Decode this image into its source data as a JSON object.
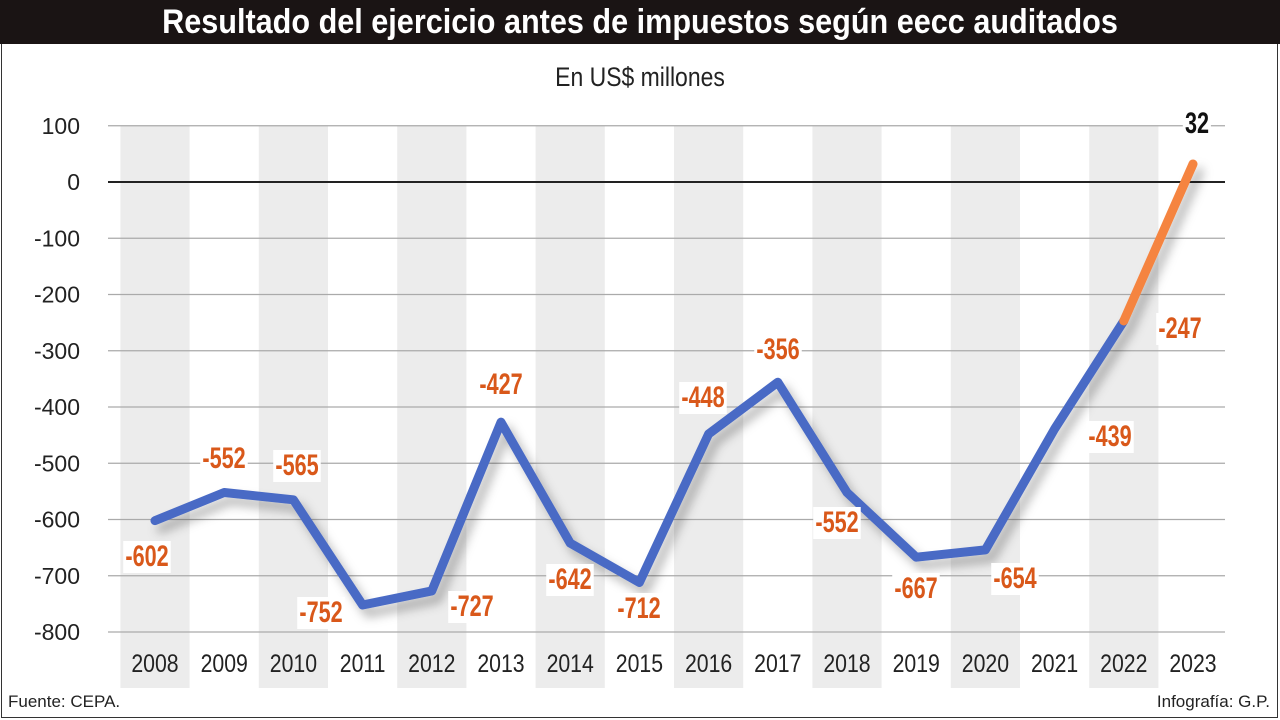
{
  "chart_data": {
    "type": "line",
    "title": "Resultado del ejercicio antes de impuestos según eecc auditados",
    "subtitle": "En US$ millones",
    "categories": [
      "2008",
      "2009",
      "2010",
      "2011",
      "2012",
      "2013",
      "2014",
      "2015",
      "2016",
      "2017",
      "2018",
      "2019",
      "2020",
      "2021",
      "2022",
      "2023"
    ],
    "values": [
      -602,
      -552,
      -565,
      -752,
      -727,
      -427,
      -642,
      -712,
      -448,
      -356,
      -552,
      -667,
      -654,
      -439,
      -247,
      32
    ],
    "data_labels": [
      "-602",
      "-552",
      "-565",
      "-752",
      "-727",
      "-427",
      "-642",
      "-712",
      "-448",
      "-356",
      "-552",
      "-667",
      "-654",
      "-439",
      "-247",
      "32"
    ],
    "ylim": [
      -800,
      100
    ],
    "yticks": [
      "100",
      "0",
      "-100",
      "-200",
      "-300",
      "-400",
      "-500",
      "-600",
      "-700",
      "-800"
    ],
    "grid": true,
    "colors": {
      "line": "#4a6bc5",
      "highlight_segment": "#f5843f",
      "label": "#d9581a",
      "band": "#ececec"
    }
  },
  "footer": {
    "source": "Fuente: CEPA.",
    "credit": "Infografía: G.P."
  }
}
